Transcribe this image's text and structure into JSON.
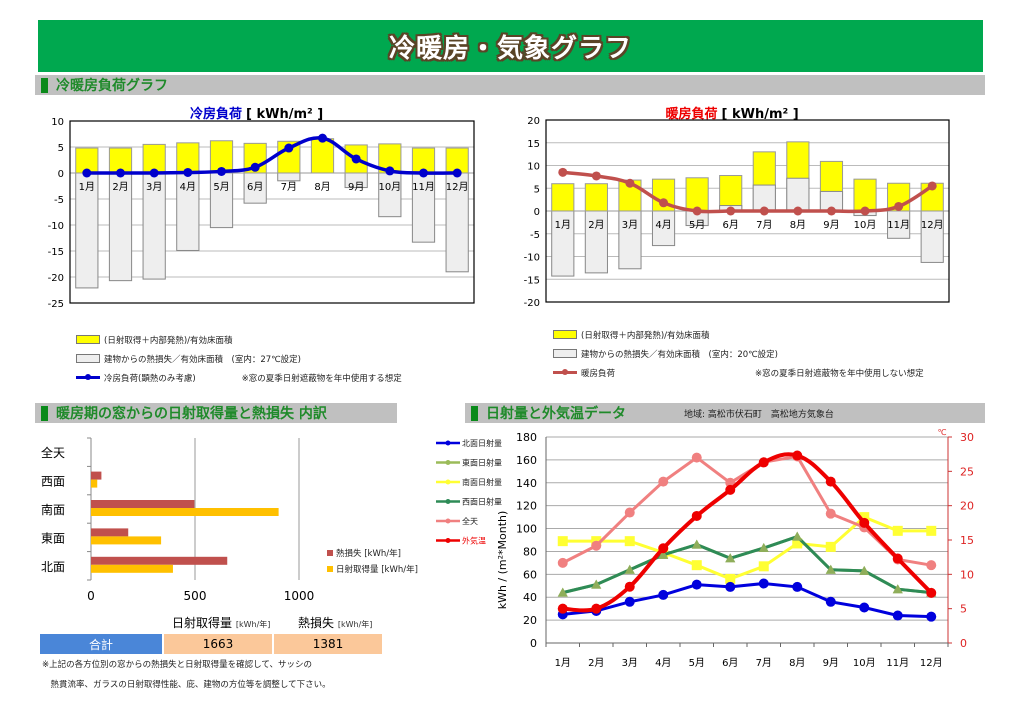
{
  "page": {
    "title": "冷暖房・気象グラフ"
  },
  "sections": {
    "load": "冷暖房負荷グラフ",
    "window": "暖房期の窓からの日射取得量と熱損失 内訳",
    "climate": "日射量と外気温データ",
    "region": "地域: 高松市伏石町　高松地方気象台"
  },
  "colors": {
    "banner": "#00a84f",
    "gain_bar": "#ffff00",
    "loss_bar": "#eeeeee",
    "cooling_line": "#0000cc",
    "heating_line": "#c0504d",
    "heat_loss": "#c0504d",
    "solar_gain": "#ffc000",
    "north": "#0000dd",
    "east": "#9bbb59",
    "south": "#ffff33",
    "west": "#2e8b57",
    "all_sky": "#f08080",
    "temp": "#ee0000"
  },
  "cooling_legend": {
    "gain": "(日射取得＋内部発熱)/有効床面積",
    "loss": "建物からの熱損失／有効床面積　(室内：27℃設定)",
    "line": "冷房負荷(顕熱のみ考慮)",
    "note": "※窓の夏季日射遮蔽物を年中使用する想定"
  },
  "heating_legend": {
    "gain": "(日射取得＋内部発熱)/有効床面積",
    "loss": "建物からの熱損失／有効床面積　(室内：20℃設定)",
    "line": "暖房負荷",
    "note": "※窓の夏季日射遮蔽物を年中使用しない想定"
  },
  "window_legend": {
    "loss": "熱損失 [kWh/年]",
    "gain": "日射取得量 [kWh/年]"
  },
  "summary": {
    "gain_head": "日射取得量",
    "loss_head": "熱損失",
    "unit": "[kWh/年]",
    "label": "合計",
    "gain_total": "1663",
    "loss_total": "1381"
  },
  "footnotes": [
    "※上記の各方位別の窓からの熱損失と日射取得量を確認して、サッシの",
    "　熱貫流率、ガラスの日射取得性能、庇、建物の方位等を調整して下さい。"
  ],
  "chart_data": [
    {
      "id": "cooling",
      "type": "bar",
      "title": "冷房負荷",
      "unit_label": "[ kWh/m² ]",
      "categories": [
        "1月",
        "2月",
        "3月",
        "4月",
        "5月",
        "6月",
        "7月",
        "8月",
        "9月",
        "10月",
        "11月",
        "12月"
      ],
      "ylim": [
        -25,
        10
      ],
      "yticks": [
        10,
        5,
        0,
        -5,
        -10,
        -15,
        -20,
        -25
      ],
      "grid": true,
      "series": [
        {
          "name": "(日射取得＋内部発熱)/有効床面積",
          "kind": "bar",
          "values": [
            4.8,
            4.8,
            5.5,
            5.8,
            6.2,
            5.7,
            6.1,
            6.6,
            5.4,
            5.6,
            4.8,
            4.8
          ]
        },
        {
          "name": "建物からの熱損失／有効床面積",
          "kind": "bar",
          "values": [
            -22.1,
            -20.7,
            -20.4,
            -14.9,
            -10.5,
            -5.8,
            -1.5,
            0,
            -2.8,
            -8.4,
            -13.3,
            -19.0
          ]
        },
        {
          "name": "冷房負荷(顕熱のみ考慮)",
          "kind": "line",
          "values": [
            0,
            0,
            0,
            0.1,
            0.3,
            1.1,
            4.8,
            6.7,
            2.7,
            0.4,
            0,
            0
          ]
        }
      ]
    },
    {
      "id": "heating",
      "type": "bar",
      "title": "暖房負荷",
      "unit_label": "[ kWh/m² ]",
      "categories": [
        "1月",
        "2月",
        "3月",
        "4月",
        "5月",
        "6月",
        "7月",
        "8月",
        "9月",
        "10月",
        "11月",
        "12月"
      ],
      "ylim": [
        -20,
        20
      ],
      "yticks": [
        20,
        15,
        10,
        5,
        0,
        -5,
        -10,
        -15,
        -20
      ],
      "grid": true,
      "series": [
        {
          "name": "(日射取得＋内部発熱)/有効床面積",
          "kind": "bar",
          "values": [
            6.0,
            6.0,
            6.8,
            7.0,
            7.3,
            7.8,
            13.0,
            15.2,
            10.9,
            7.0,
            6.1,
            6.1
          ]
        },
        {
          "name": "建物からの熱損失／有効床面積",
          "kind": "bar",
          "values": [
            -14.3,
            -13.6,
            -12.7,
            -7.6,
            -3.2,
            1.2,
            5.7,
            7.2,
            4.3,
            -1.0,
            -6.0,
            -11.3
          ]
        },
        {
          "name": "暖房負荷",
          "kind": "line",
          "values": [
            8.5,
            7.7,
            6.1,
            1.8,
            0,
            0,
            0,
            0,
            0,
            0,
            1.0,
            5.5
          ]
        }
      ]
    },
    {
      "id": "window",
      "type": "bar",
      "orientation": "horizontal",
      "title": "暖房期の窓からの日射取得量と熱損失 内訳",
      "categories": [
        "全天",
        "西面",
        "南面",
        "東面",
        "北面"
      ],
      "xlim": [
        0,
        1000
      ],
      "xticks": [
        0,
        500,
        1000
      ],
      "grid": true,
      "legend": "right",
      "series": [
        {
          "name": "熱損失 [kWh/年]",
          "values": [
            0,
            50,
            497,
            179,
            655
          ]
        },
        {
          "name": "日射取得量 [kWh/年]",
          "values": [
            0,
            30,
            902,
            337,
            394
          ]
        }
      ]
    },
    {
      "id": "climate",
      "type": "line",
      "title": "日射量と外気温データ",
      "categories": [
        "1月",
        "2月",
        "3月",
        "4月",
        "5月",
        "6月",
        "7月",
        "8月",
        "9月",
        "10月",
        "11月",
        "12月"
      ],
      "ylabel": "kWh / (m²*Month)",
      "ylim": [
        0,
        180
      ],
      "yticks": [
        0,
        20,
        40,
        60,
        80,
        100,
        120,
        140,
        160,
        180
      ],
      "y2label": "℃",
      "y2lim": [
        0,
        30
      ],
      "y2ticks": [
        0,
        5,
        10,
        15,
        20,
        25,
        30
      ],
      "grid": true,
      "legend": "left",
      "series": [
        {
          "name": "北面日射量",
          "axis": "left",
          "values": [
            25,
            28,
            36,
            42,
            51,
            49,
            52,
            49,
            36,
            31,
            24,
            23
          ]
        },
        {
          "name": "東面日射量",
          "axis": "left",
          "values": [
            44,
            51,
            64,
            77,
            86,
            74,
            83,
            93,
            64,
            63,
            47,
            44
          ]
        },
        {
          "name": "南面日射量",
          "axis": "left",
          "values": [
            89,
            89,
            89,
            79,
            68,
            56,
            67,
            87,
            84,
            110,
            98,
            98
          ]
        },
        {
          "name": "西面日射量",
          "axis": "left",
          "values": [
            44,
            51,
            64,
            77,
            86,
            74,
            83,
            93,
            64,
            63,
            47,
            44
          ]
        },
        {
          "name": "全天",
          "axis": "left",
          "values": [
            70,
            85,
            114,
            141,
            162,
            140,
            158,
            163,
            113,
            101,
            73,
            68
          ]
        },
        {
          "name": "外気温",
          "axis": "right",
          "values": [
            5.0,
            5.0,
            8.2,
            13.8,
            18.5,
            22.3,
            26.3,
            27.3,
            23.5,
            17.5,
            12.3,
            7.3
          ]
        }
      ]
    }
  ]
}
